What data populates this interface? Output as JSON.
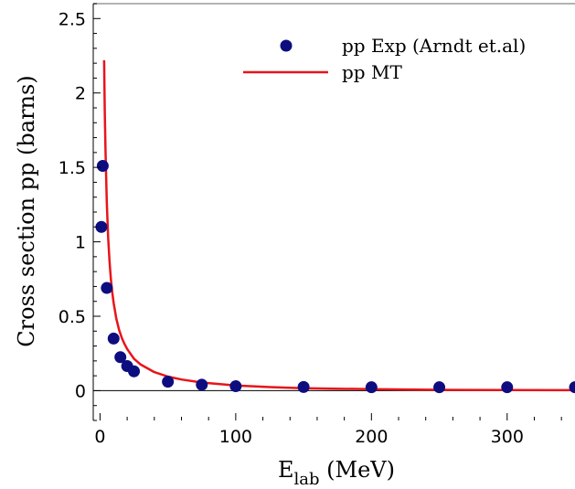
{
  "chart_data": {
    "type": "scatter",
    "xlabel_main": "E",
    "xlabel_sub": "lab",
    "xlabel_unit": " (MeV)",
    "ylabel": "Cross section pp (barns)",
    "xlim": [
      -5,
      350
    ],
    "ylim": [
      -0.2,
      2.6
    ],
    "x_ticks": [
      0,
      100,
      200,
      300
    ],
    "x_tick_labels": [
      "0",
      "100",
      "200",
      "300"
    ],
    "y_ticks": [
      0,
      0.5,
      1,
      1.5,
      2,
      2.5
    ],
    "y_tick_labels": [
      "0",
      "0.5",
      "1",
      "1.5",
      "2",
      "2.5"
    ],
    "grid": false,
    "legend_position": "top-right",
    "series": [
      {
        "name": "pp Exp (Arndt et.al)",
        "kind": "scatter",
        "color": "#0d0d80",
        "x": [
          1,
          2,
          5,
          10,
          15,
          20,
          25,
          50,
          75,
          100,
          150,
          200,
          250,
          300,
          350
        ],
        "y": [
          1.1,
          1.51,
          0.69,
          0.35,
          0.225,
          0.165,
          0.13,
          0.06,
          0.04,
          0.03,
          0.025,
          0.023,
          0.023,
          0.023,
          0.023
        ]
      },
      {
        "name": "pp MT",
        "kind": "line",
        "color": "#e8141a",
        "x": [
          3,
          3.5,
          4,
          5,
          6,
          7,
          8,
          9,
          10,
          12,
          14,
          16,
          18,
          20,
          25,
          30,
          40,
          50,
          60,
          75,
          100,
          125,
          150,
          200,
          250,
          300,
          350
        ],
        "y": [
          2.22,
          1.88,
          1.62,
          1.27,
          1.03,
          0.87,
          0.75,
          0.66,
          0.59,
          0.485,
          0.41,
          0.355,
          0.315,
          0.28,
          0.215,
          0.175,
          0.125,
          0.095,
          0.075,
          0.055,
          0.035,
          0.024,
          0.017,
          0.01,
          0.006,
          0.004,
          0.003
        ]
      }
    ]
  }
}
